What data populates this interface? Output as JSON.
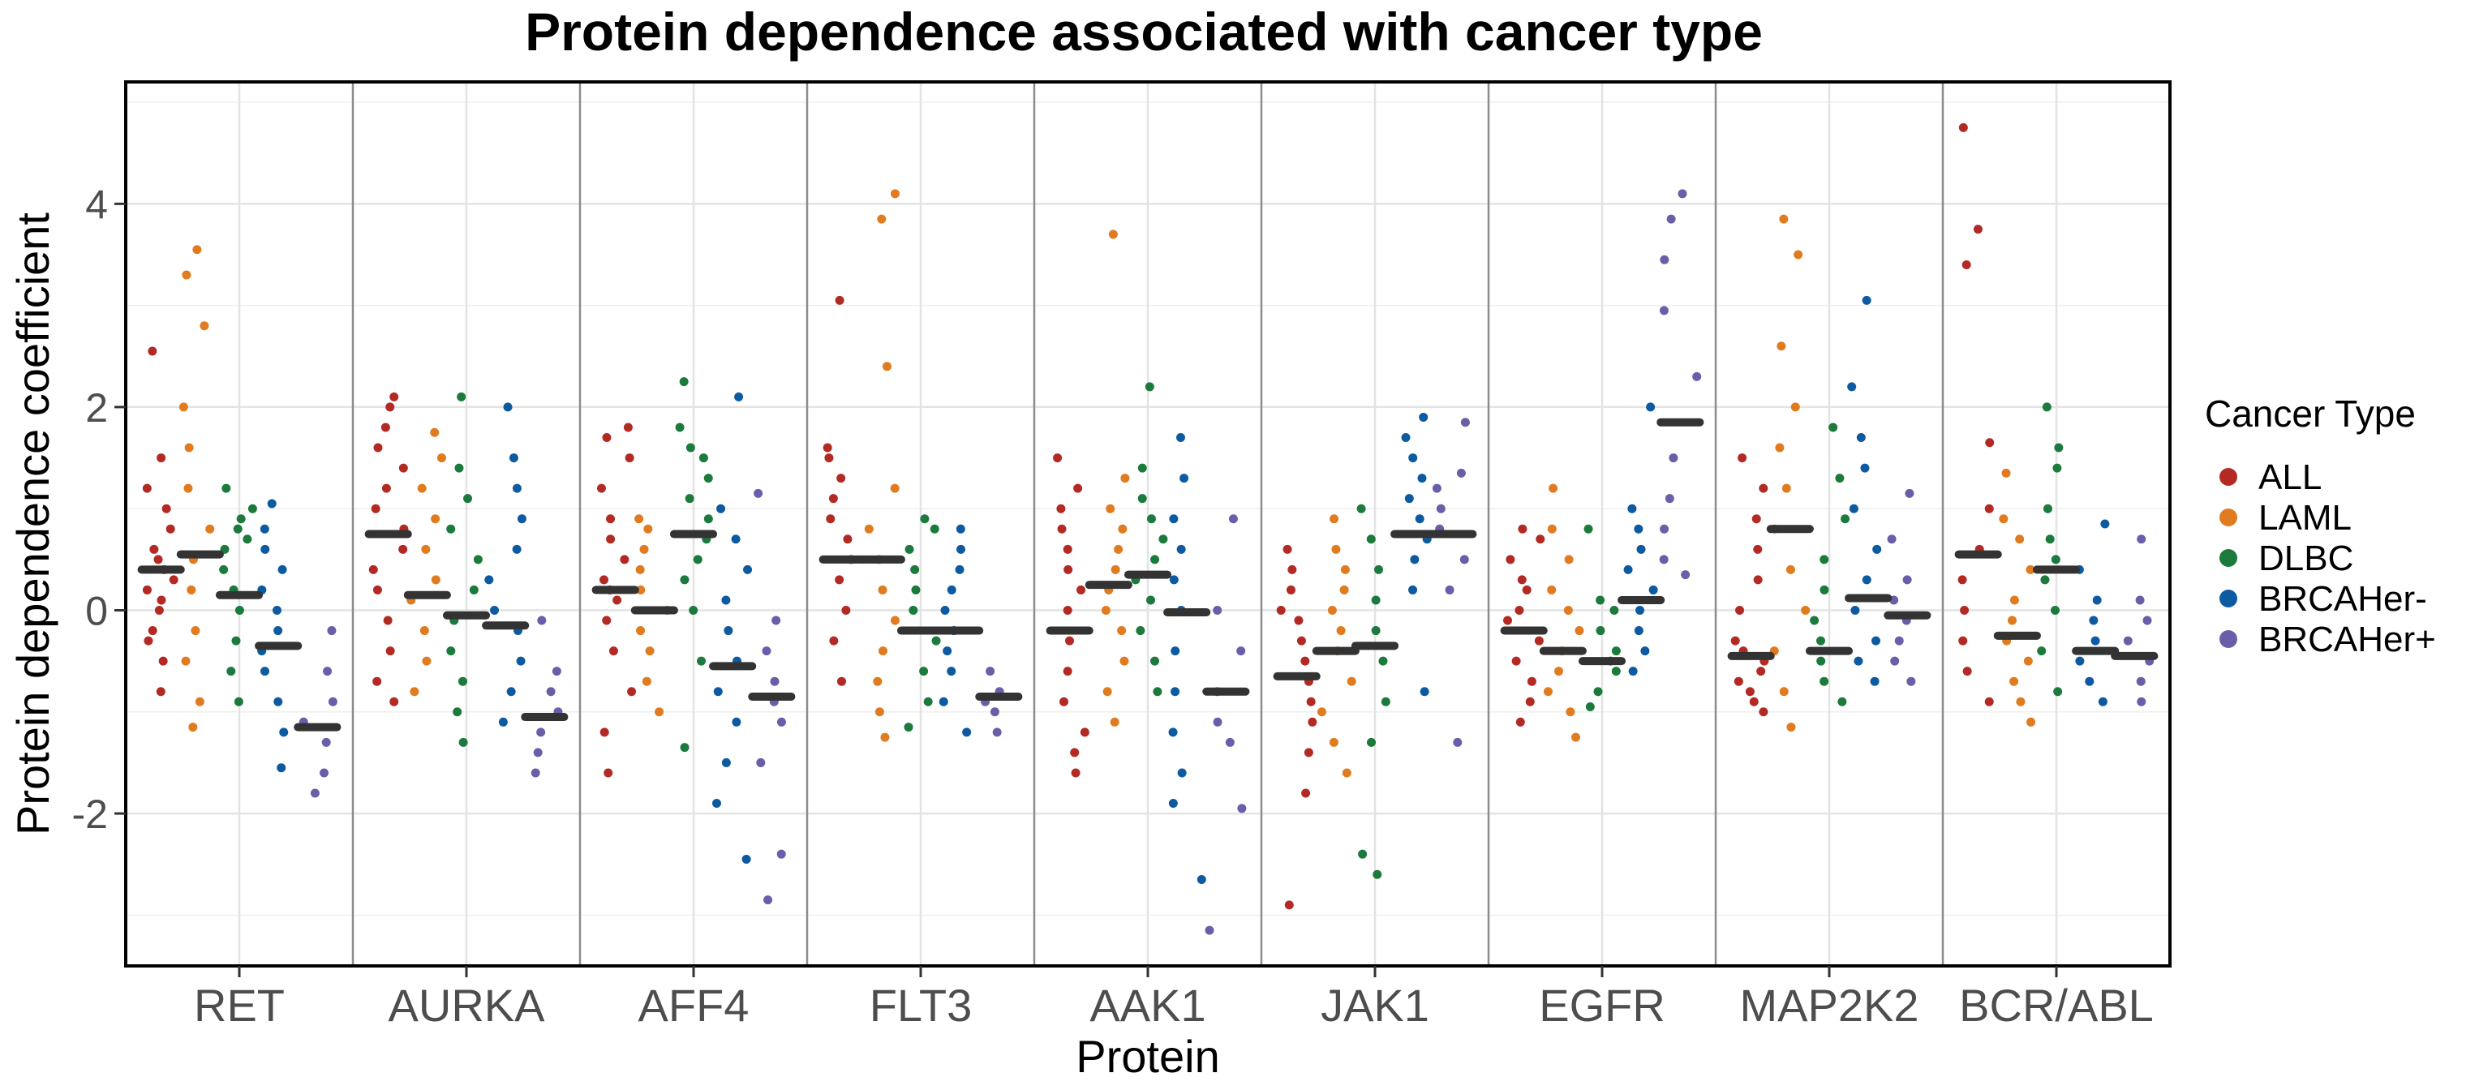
{
  "chart_data": {
    "type": "strip",
    "title": "Protein dependence associated with cancer type",
    "xlabel": "Protein",
    "ylabel": "Protein dependence coefficient",
    "ylim": [
      -3.5,
      5.2
    ],
    "yticks": [
      -2,
      0,
      2,
      4
    ],
    "grid": true,
    "legend_position": "right",
    "legend_title": "Cancer Type",
    "categories": [
      "RET",
      "AURKA",
      "AFF4",
      "FLT3",
      "AAK1",
      "JAK1",
      "EGFR",
      "MAP2K2",
      "BCR/ABL"
    ],
    "series": [
      {
        "name": "ALL",
        "color": "#b22a23",
        "values": [
          [
            -0.8,
            -0.5,
            -0.3,
            -0.2,
            0,
            0.1,
            0.2,
            0.3,
            0.4,
            0.5,
            0.6,
            0.8,
            1.0,
            1.2,
            1.5,
            2.55
          ],
          [
            -0.9,
            -0.7,
            -0.4,
            -0.1,
            0.2,
            0.4,
            0.6,
            0.8,
            1.0,
            1.2,
            1.4,
            1.6,
            1.8,
            2.0,
            2.1
          ],
          [
            -1.6,
            -1.2,
            -0.8,
            -0.4,
            -0.1,
            0.1,
            0.2,
            0.3,
            0.5,
            0.7,
            0.9,
            1.2,
            1.5,
            1.7,
            1.8
          ],
          [
            -0.7,
            -0.3,
            0,
            0.3,
            0.5,
            0.7,
            0.9,
            1.1,
            1.3,
            1.5,
            1.6,
            3.05
          ],
          [
            -1.6,
            -1.4,
            -1.2,
            -0.9,
            -0.6,
            -0.3,
            0,
            0.2,
            0.4,
            0.6,
            0.8,
            1.0,
            1.2,
            1.5
          ],
          [
            -2.9,
            -1.8,
            -1.4,
            -1.1,
            -0.9,
            -0.7,
            -0.5,
            -0.3,
            -0.1,
            0,
            0.2,
            0.4,
            0.6
          ],
          [
            -1.1,
            -0.9,
            -0.7,
            -0.5,
            -0.3,
            -0.1,
            0,
            0.2,
            0.3,
            0.5,
            0.7,
            0.8
          ],
          [
            -1.0,
            -0.9,
            -0.8,
            -0.7,
            -0.6,
            -0.5,
            -0.4,
            -0.3,
            0,
            0.3,
            0.6,
            0.9,
            1.2,
            1.5
          ],
          [
            -0.9,
            -0.6,
            -0.3,
            0,
            0.3,
            0.6,
            1.0,
            1.65,
            3.4,
            3.75,
            4.75
          ]
        ]
      },
      {
        "name": "LAML",
        "color": "#e07b20",
        "values": [
          [
            -1.15,
            -0.9,
            -0.5,
            -0.2,
            0.2,
            0.5,
            0.8,
            1.2,
            1.6,
            2.0,
            2.8,
            3.3,
            3.55
          ],
          [
            -0.8,
            -0.5,
            -0.2,
            0.1,
            0.3,
            0.6,
            0.9,
            1.2,
            1.5,
            1.75
          ],
          [
            -1.0,
            -0.7,
            -0.4,
            -0.2,
            0,
            0.2,
            0.4,
            0.6,
            0.8,
            0.9
          ],
          [
            -1.25,
            -1.0,
            -0.7,
            -0.4,
            -0.1,
            0.2,
            0.5,
            0.8,
            1.2,
            2.4,
            3.85,
            4.1
          ],
          [
            -1.1,
            -0.8,
            -0.5,
            -0.2,
            0,
            0.2,
            0.4,
            0.6,
            0.8,
            1.0,
            1.3,
            3.7
          ],
          [
            -1.6,
            -1.3,
            -1.0,
            -0.7,
            -0.4,
            -0.2,
            0,
            0.2,
            0.4,
            0.6,
            0.9
          ],
          [
            -1.25,
            -1.0,
            -0.8,
            -0.6,
            -0.4,
            -0.2,
            0,
            0.2,
            0.5,
            0.8,
            1.2
          ],
          [
            -1.15,
            -0.8,
            -0.4,
            0,
            0.4,
            0.8,
            1.2,
            1.6,
            2.0,
            2.6,
            3.5,
            3.85
          ],
          [
            -1.1,
            -0.9,
            -0.7,
            -0.5,
            -0.3,
            -0.1,
            0.1,
            0.4,
            0.7,
            0.9,
            1.35
          ]
        ]
      },
      {
        "name": "DLBC",
        "color": "#1b7a3c",
        "values": [
          [
            -0.9,
            -0.6,
            -0.3,
            0,
            0.2,
            0.4,
            0.6,
            0.7,
            0.8,
            0.9,
            1.0,
            1.2
          ],
          [
            -1.3,
            -1.0,
            -0.7,
            -0.4,
            -0.1,
            0.2,
            0.5,
            0.8,
            1.1,
            1.4,
            2.1
          ],
          [
            -1.35,
            -0.5,
            0,
            0.3,
            0.5,
            0.7,
            0.9,
            1.1,
            1.3,
            1.5,
            1.6,
            1.8,
            2.25
          ],
          [
            -1.15,
            -0.9,
            -0.6,
            -0.3,
            0,
            0.2,
            0.4,
            0.6,
            0.8,
            0.9
          ],
          [
            -0.8,
            -0.5,
            -0.2,
            0.1,
            0.3,
            0.5,
            0.7,
            0.9,
            1.1,
            1.4,
            2.2
          ],
          [
            -2.6,
            -2.4,
            -1.3,
            -0.9,
            -0.5,
            -0.2,
            0.1,
            0.4,
            0.7,
            1.0
          ],
          [
            -0.95,
            -0.8,
            -0.6,
            -0.5,
            -0.4,
            -0.2,
            0,
            0.1,
            0.8
          ],
          [
            -0.9,
            -0.7,
            -0.5,
            -0.3,
            -0.1,
            0.2,
            0.5,
            0.9,
            1.3,
            1.8
          ],
          [
            -0.8,
            -0.4,
            0,
            0.3,
            0.5,
            0.7,
            1.0,
            1.4,
            1.6,
            2.0
          ]
        ]
      },
      {
        "name": "BRCAHer-",
        "color": "#0d5aa0",
        "values": [
          [
            -1.55,
            -1.2,
            -0.9,
            -0.6,
            -0.4,
            -0.2,
            0,
            0.2,
            0.4,
            0.6,
            0.8,
            1.05
          ],
          [
            -1.1,
            -0.8,
            -0.5,
            -0.2,
            0,
            0.3,
            0.6,
            0.9,
            1.2,
            1.5,
            2.0
          ],
          [
            -2.45,
            -1.9,
            -1.5,
            -1.1,
            -0.8,
            -0.5,
            -0.2,
            0.1,
            0.4,
            0.7,
            1.0,
            2.1
          ],
          [
            -1.2,
            -0.9,
            -0.6,
            -0.4,
            -0.2,
            0,
            0.2,
            0.4,
            0.6,
            0.8
          ],
          [
            -2.65,
            -1.9,
            -1.6,
            -1.2,
            -0.8,
            -0.4,
            0,
            0.3,
            0.6,
            0.9,
            1.3,
            1.7
          ],
          [
            -0.8,
            0.2,
            0.5,
            0.7,
            0.9,
            1.1,
            1.3,
            1.5,
            1.7,
            1.9
          ],
          [
            -0.6,
            -0.4,
            -0.2,
            0,
            0.2,
            0.4,
            0.6,
            0.8,
            1.0,
            2.0
          ],
          [
            -0.7,
            -0.5,
            -0.3,
            0,
            0.3,
            0.6,
            1.0,
            1.4,
            1.7,
            2.2,
            3.05
          ],
          [
            -0.9,
            -0.7,
            -0.5,
            -0.3,
            -0.1,
            0.1,
            0.4,
            0.85
          ]
        ]
      },
      {
        "name": "BRCAHer+",
        "color": "#6b5da8",
        "values": [
          [
            -1.8,
            -1.6,
            -1.3,
            -1.1,
            -0.9,
            -0.6,
            -0.2
          ],
          [
            -1.6,
            -1.4,
            -1.2,
            -1.0,
            -0.8,
            -0.6,
            -0.1
          ],
          [
            -2.85,
            -2.4,
            -1.5,
            -1.1,
            -0.9,
            -0.7,
            -0.4,
            -0.1,
            1.15
          ],
          [
            -1.2,
            -1.0,
            -0.9,
            -0.8,
            -0.6
          ],
          [
            -3.15,
            -1.95,
            -1.3,
            -1.1,
            -0.8,
            -0.4,
            0,
            0.9
          ],
          [
            -1.3,
            0.2,
            0.5,
            0.8,
            1.0,
            1.2,
            1.35,
            1.85
          ],
          [
            0.35,
            0.5,
            0.8,
            1.1,
            1.5,
            2.3,
            2.95,
            3.45,
            3.85,
            4.1
          ],
          [
            -0.7,
            -0.5,
            -0.3,
            -0.1,
            0.1,
            0.3,
            0.7,
            1.15
          ],
          [
            -0.9,
            -0.7,
            -0.5,
            -0.3,
            -0.1,
            0.1,
            0.7
          ]
        ]
      }
    ],
    "medians": [
      [
        0.4,
        0.55,
        0.15,
        -0.35,
        -1.15
      ],
      [
        0.75,
        0.15,
        -0.05,
        -0.15,
        -1.05
      ],
      [
        0.2,
        0,
        0.75,
        -0.55,
        -0.85
      ],
      [
        0.5,
        0.5,
        -0.2,
        -0.2,
        -0.85
      ],
      [
        -0.2,
        0.25,
        0.35,
        -0.02,
        -0.8
      ],
      [
        -0.65,
        -0.4,
        -0.35,
        0.75,
        0.75
      ],
      [
        -0.2,
        -0.4,
        -0.5,
        0.1,
        1.85
      ],
      [
        -0.45,
        0.8,
        -0.4,
        0.12,
        -0.05
      ],
      [
        0.55,
        -0.25,
        0.4,
        -0.4,
        -0.45
      ]
    ]
  }
}
